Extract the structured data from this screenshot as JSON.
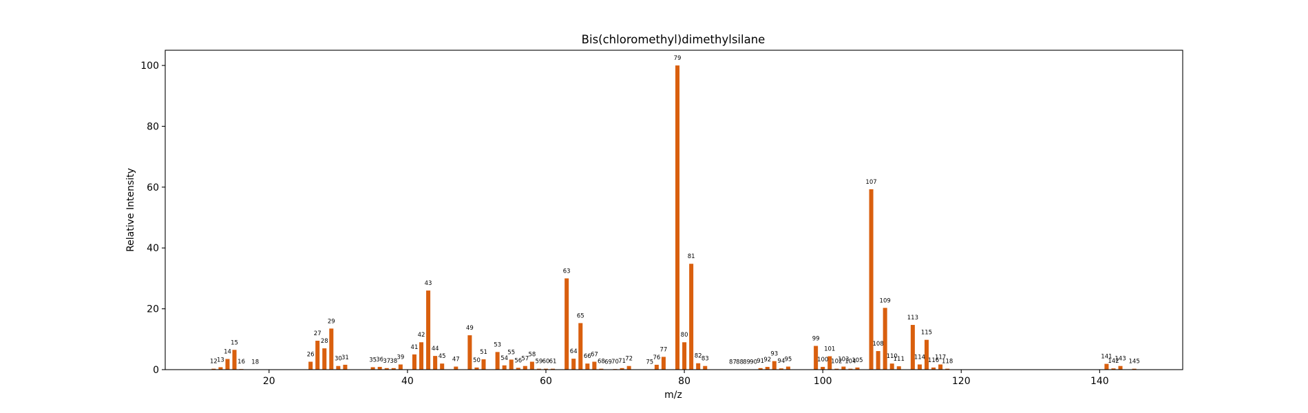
{
  "chart_data": {
    "type": "bar",
    "title": "Bis(chloromethyl)dimethylsilane",
    "xlabel": "m/z",
    "ylabel": "Relative Intensity",
    "xlim": [
      5,
      152
    ],
    "ylim": [
      0,
      105
    ],
    "xticks": [
      20,
      40,
      60,
      80,
      100,
      120,
      140
    ],
    "yticks": [
      0,
      20,
      40,
      60,
      80,
      100
    ],
    "bar_color": "#d95f0e",
    "grid": false,
    "x": [
      12,
      13,
      14,
      15,
      16,
      18,
      26,
      27,
      28,
      29,
      30,
      31,
      35,
      36,
      37,
      38,
      39,
      41,
      42,
      43,
      44,
      45,
      47,
      49,
      50,
      51,
      53,
      54,
      55,
      56,
      57,
      58,
      59,
      60,
      61,
      63,
      64,
      65,
      66,
      67,
      68,
      69,
      70,
      71,
      72,
      75,
      76,
      77,
      79,
      80,
      81,
      82,
      83,
      87,
      88,
      89,
      90,
      91,
      92,
      93,
      94,
      95,
      99,
      100,
      101,
      102,
      103,
      104,
      105,
      107,
      108,
      109,
      110,
      111,
      113,
      114,
      115,
      116,
      117,
      118,
      141,
      142,
      143,
      145
    ],
    "values": [
      0.3,
      0.8,
      3.5,
      6.5,
      0.2,
      0.1,
      2.6,
      9.5,
      7.0,
      13.5,
      1.2,
      1.6,
      0.8,
      0.9,
      0.5,
      0.5,
      1.7,
      5.0,
      9.0,
      26.0,
      4.5,
      2.0,
      1.0,
      11.3,
      0.7,
      3.4,
      5.8,
      1.4,
      3.3,
      0.6,
      1.2,
      2.6,
      0.3,
      0.3,
      0.3,
      30.0,
      3.6,
      15.3,
      2.0,
      2.6,
      0.3,
      0.1,
      0.2,
      0.5,
      1.2,
      0.1,
      1.6,
      4.2,
      100.0,
      9.0,
      34.8,
      2.1,
      1.2,
      0.1,
      0.1,
      0.1,
      0.1,
      0.5,
      0.9,
      2.8,
      0.4,
      1.0,
      7.8,
      0.9,
      4.4,
      0.3,
      1.0,
      0.3,
      0.7,
      59.3,
      6.1,
      20.3,
      2.0,
      1.1,
      14.7,
      1.7,
      9.8,
      0.7,
      1.7,
      0.3,
      1.9,
      0.4,
      1.2,
      0.3
    ],
    "labels": [
      "12",
      "13",
      "14",
      "15",
      "16",
      "18",
      "26",
      "27",
      "28",
      "29",
      "30",
      "31",
      "35",
      "36",
      "37",
      "38",
      "39",
      "41",
      "42",
      "43",
      "44",
      "45",
      "47",
      "49",
      "50",
      "51",
      "53",
      "54",
      "55",
      "56",
      "57",
      "58",
      "59",
      "60",
      "61",
      "63",
      "64",
      "65",
      "66",
      "67",
      "68",
      "69",
      "70",
      "71",
      "72",
      "75",
      "76",
      "77",
      "79",
      "80",
      "81",
      "82",
      "83",
      "87",
      "88",
      "89",
      "90",
      "91",
      "92",
      "93",
      "94",
      "95",
      "99",
      "100",
      "101",
      "102",
      "103",
      "104",
      "105",
      "107",
      "108",
      "109",
      "110",
      "111",
      "113",
      "114",
      "115",
      "116",
      "117",
      "118",
      "141",
      "142",
      "143",
      "145"
    ]
  }
}
